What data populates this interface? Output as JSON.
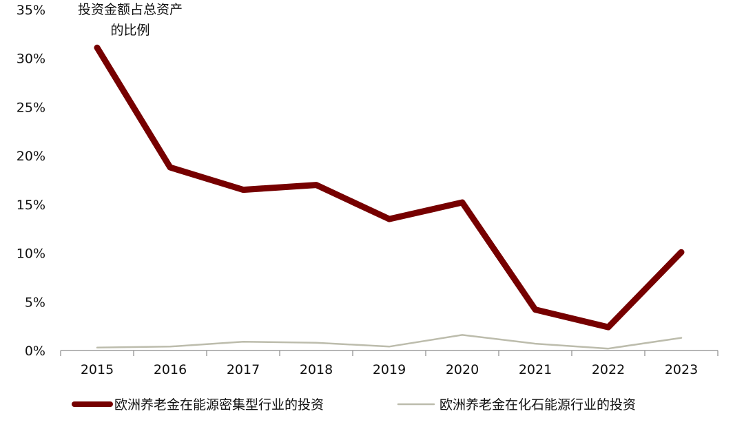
{
  "chart_data": {
    "type": "line",
    "title": "",
    "ylabel": "投资金额占总资产的比例",
    "ylabel_lines": [
      "投资金额占总资产",
      "的比例"
    ],
    "xlabel": "",
    "x": [
      "2015",
      "2016",
      "2017",
      "2018",
      "2019",
      "2020",
      "2021",
      "2022",
      "2023"
    ],
    "ylim": [
      0,
      35
    ],
    "yticks": [
      0,
      5,
      10,
      15,
      20,
      25,
      30,
      35
    ],
    "ytick_labels": [
      "0%",
      "5%",
      "10%",
      "15%",
      "20%",
      "25%",
      "30%",
      "35%"
    ],
    "unit": "%",
    "grid": false,
    "legend_position": "bottom",
    "series": [
      {
        "name": "欧洲养老金在能源密集型行业的投资",
        "color": "#760000",
        "values": [
          31.1,
          18.8,
          16.5,
          17.0,
          13.5,
          15.2,
          4.2,
          2.4,
          10.1
        ]
      },
      {
        "name": "欧洲养老金在化石能源行业的投资",
        "color": "#bcbcac",
        "values": [
          0.3,
          0.4,
          0.9,
          0.8,
          0.4,
          1.6,
          0.7,
          0.2,
          1.3
        ]
      }
    ]
  }
}
